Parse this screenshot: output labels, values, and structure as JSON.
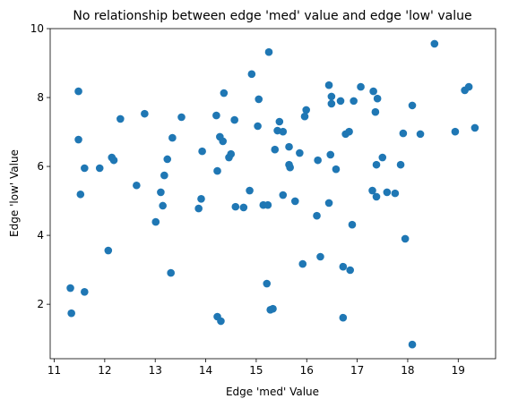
{
  "chart_data": {
    "type": "scatter",
    "title": "No relationship between edge 'med' value and edge 'low' value",
    "x_label": "Edge 'med' Value",
    "y_label": "Edge 'low' Value",
    "color": "#1f77b4",
    "xlim": [
      10.92,
      19.74
    ],
    "ylim": [
      0.42,
      10.0
    ],
    "xticks": [
      11,
      12,
      13,
      14,
      15,
      16,
      17,
      18,
      19
    ],
    "yticks": [
      2,
      4,
      6,
      8,
      10
    ],
    "x": [
      11.32,
      11.34,
      11.48,
      11.48,
      11.52,
      11.6,
      11.6,
      11.9,
      12.07,
      12.14,
      12.18,
      12.31,
      12.63,
      12.79,
      13.01,
      13.11,
      13.15,
      13.18,
      13.24,
      13.31,
      13.34,
      13.52,
      13.86,
      13.91,
      13.93,
      14.21,
      14.23,
      14.23,
      14.28,
      14.3,
      14.34,
      14.36,
      14.46,
      14.5,
      14.57,
      14.59,
      14.75,
      14.87,
      14.91,
      15.03,
      15.05,
      15.14,
      15.21,
      15.23,
      15.25,
      15.28,
      15.33,
      15.37,
      15.42,
      15.46,
      15.53,
      15.53,
      15.65,
      15.65,
      15.67,
      15.77,
      15.86,
      15.92,
      15.96,
      15.99,
      16.2,
      16.22,
      16.27,
      16.44,
      16.44,
      16.47,
      16.49,
      16.49,
      16.58,
      16.67,
      16.72,
      16.72,
      16.77,
      16.84,
      16.86,
      16.9,
      16.93,
      17.07,
      17.3,
      17.32,
      17.36,
      17.38,
      17.38,
      17.4,
      17.5,
      17.59,
      17.75,
      17.86,
      17.91,
      17.95,
      18.09,
      18.09,
      18.25,
      18.53,
      18.94,
      19.13,
      19.21,
      19.33
    ],
    "values": [
      2.47,
      1.74,
      6.78,
      8.18,
      5.19,
      2.36,
      5.95,
      5.95,
      3.56,
      6.26,
      6.18,
      7.38,
      5.45,
      7.53,
      4.39,
      5.25,
      4.86,
      5.74,
      6.21,
      2.91,
      6.83,
      7.43,
      4.78,
      5.06,
      6.44,
      7.48,
      5.87,
      1.64,
      6.86,
      1.51,
      6.73,
      8.13,
      6.26,
      6.36,
      7.35,
      4.83,
      4.81,
      5.3,
      8.68,
      7.17,
      7.95,
      4.88,
      2.6,
      4.88,
      9.32,
      1.84,
      1.87,
      6.49,
      7.04,
      7.3,
      7.01,
      5.17,
      6.57,
      6.05,
      5.97,
      4.99,
      6.39,
      3.17,
      7.45,
      7.64,
      4.57,
      6.18,
      3.38,
      4.94,
      8.36,
      6.34,
      8.03,
      7.82,
      5.92,
      7.9,
      3.09,
      1.61,
      6.94,
      7.01,
      2.99,
      4.31,
      7.9,
      8.31,
      5.3,
      8.18,
      7.58,
      5.12,
      6.05,
      7.97,
      6.26,
      5.25,
      5.22,
      6.05,
      6.96,
      3.9,
      7.77,
      0.83,
      6.94,
      9.56,
      7.01,
      8.21,
      8.31,
      7.12
    ]
  }
}
